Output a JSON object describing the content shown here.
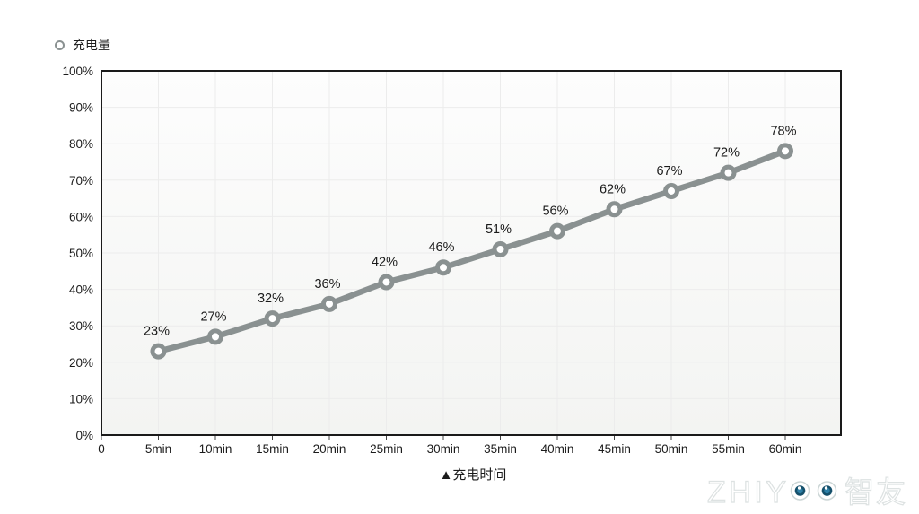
{
  "legend": {
    "label": "充电量"
  },
  "chart_data": {
    "type": "line",
    "title": "",
    "xlabel": "▲充电时间",
    "ylabel": "",
    "ylim": [
      0,
      100
    ],
    "ytick_step": 10,
    "grid": true,
    "legend_position": "top-left",
    "xtick_labels": [
      "0",
      "5min",
      "10min",
      "15min",
      "20min",
      "25min",
      "30min",
      "35min",
      "40min",
      "45min",
      "50min",
      "55min",
      "60min"
    ],
    "ytick_labels": [
      "0%",
      "10%",
      "20%",
      "30%",
      "40%",
      "50%",
      "60%",
      "70%",
      "80%",
      "90%",
      "100%"
    ],
    "series": [
      {
        "name": "充电量",
        "x_minutes": [
          5,
          10,
          15,
          20,
          25,
          30,
          35,
          40,
          45,
          50,
          55,
          60
        ],
        "values": [
          23,
          27,
          32,
          36,
          42,
          46,
          51,
          56,
          62,
          67,
          72,
          78
        ],
        "point_labels": [
          "23%",
          "27%",
          "32%",
          "36%",
          "42%",
          "46%",
          "51%",
          "56%",
          "62%",
          "67%",
          "72%",
          "78%"
        ]
      }
    ],
    "colors": {
      "line": "#8a9191",
      "marker_fill": "#ffffff",
      "point_label": "#1a1a1a",
      "axis_text": "#1b1b1b",
      "grid": "#ececec",
      "plot_border": "#1a1a1a",
      "plot_bg_top": "#fdfdfd",
      "plot_bg_bottom": "#f3f4f2"
    }
  },
  "watermark": {
    "full_text": "ZHIYOO 智友",
    "prefix": "ZHIY",
    "suffix": "智友",
    "outline_color": "#dde2e2",
    "eye_outer_color": "#ffffff",
    "eye_pupil_color": "#15506b",
    "eye_iris_color": "#2c7fa6"
  }
}
